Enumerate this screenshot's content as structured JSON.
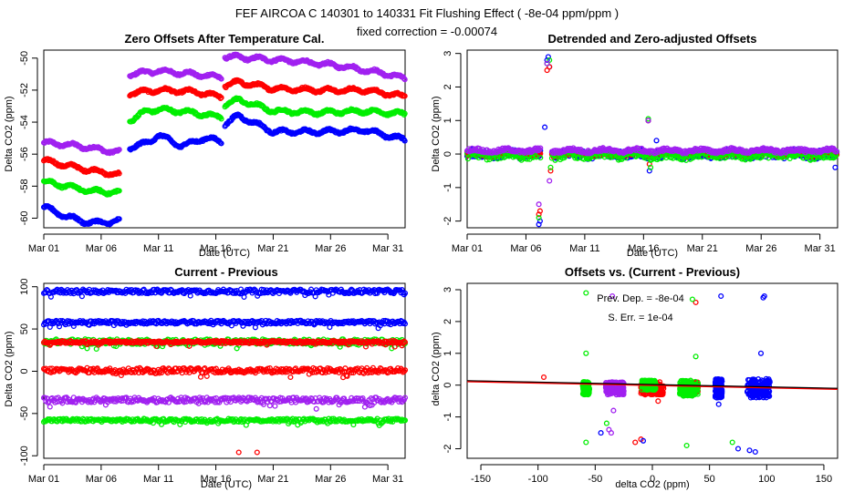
{
  "figure": {
    "suptitle": "FEF   AIRCOA C   140301 to 140331   Fit Flushing Effect ( -8e-04 ppm/ppm )",
    "subtitle": "fixed correction = -0.00074"
  },
  "colors": {
    "blue": "#0000ff",
    "red": "#ff0000",
    "green": "#00ee00",
    "purple": "#a020f0",
    "black": "#000000"
  },
  "chart_data": [
    {
      "id": "zero_offsets",
      "type": "scatter",
      "title": "Zero Offsets After Temperature Cal.",
      "xlabel": "Date (UTC)",
      "ylabel": "Delta CO2 (ppm)",
      "xlim": [
        0,
        31.5
      ],
      "ylim": [
        -60.6,
        -49.5
      ],
      "xticks": [
        {
          "v": 0,
          "label": "Mar 01"
        },
        {
          "v": 5,
          "label": "Mar 06"
        },
        {
          "v": 10,
          "label": "Mar 11"
        },
        {
          "v": 15,
          "label": "Mar 16"
        },
        {
          "v": 20,
          "label": "Mar 21"
        },
        {
          "v": 25,
          "label": "Mar 26"
        },
        {
          "v": 30,
          "label": "Mar 31"
        }
      ],
      "yticks": [
        {
          "v": -50,
          "label": "-50"
        },
        {
          "v": -52,
          "label": "-52"
        },
        {
          "v": -54,
          "label": "-54"
        },
        {
          "v": -56,
          "label": "-56"
        },
        {
          "v": -58,
          "label": "-58"
        },
        {
          "v": -60,
          "label": "-60"
        }
      ],
      "series": [
        {
          "name": "purple",
          "color": "purple",
          "segments": [
            {
              "x": [
                0,
                2,
                4,
                6.6
              ],
              "y": [
                -55.3,
                -55.4,
                -55.6,
                -55.9
              ]
            },
            {
              "x": [
                7.5,
                10,
                13,
                15.5
              ],
              "y": [
                -51.0,
                -50.8,
                -51.0,
                -51.2
              ]
            },
            {
              "x": [
                15.8,
                18,
                22,
                26,
                30,
                31.5
              ],
              "y": [
                -49.9,
                -50.0,
                -50.2,
                -50.5,
                -51.0,
                -51.3
              ]
            }
          ]
        },
        {
          "name": "red",
          "color": "red",
          "segments": [
            {
              "x": [
                0,
                2,
                4,
                6.6
              ],
              "y": [
                -56.4,
                -56.7,
                -57.0,
                -57.3
              ]
            },
            {
              "x": [
                7.5,
                10,
                13,
                15.5
              ],
              "y": [
                -52.2,
                -52.0,
                -52.1,
                -52.4
              ]
            },
            {
              "x": [
                15.8,
                17,
                20,
                24,
                28,
                31.5
              ],
              "y": [
                -51.7,
                -51.5,
                -51.9,
                -52.0,
                -52.0,
                -52.4
              ]
            }
          ]
        },
        {
          "name": "green",
          "color": "green",
          "segments": [
            {
              "x": [
                0,
                2,
                4,
                6.6
              ],
              "y": [
                -57.7,
                -58.0,
                -58.3,
                -58.4
              ]
            },
            {
              "x": [
                7.5,
                9,
                10,
                13,
                15.5
              ],
              "y": [
                -53.9,
                -53.3,
                -53.2,
                -53.4,
                -53.7
              ]
            },
            {
              "x": [
                15.8,
                17,
                20,
                24,
                28,
                31.5
              ],
              "y": [
                -52.9,
                -52.6,
                -53.3,
                -53.4,
                -53.3,
                -53.5
              ]
            }
          ]
        },
        {
          "name": "blue",
          "color": "blue",
          "segments": [
            {
              "x": [
                0,
                2,
                4,
                6.6
              ],
              "y": [
                -59.3,
                -59.9,
                -60.3,
                -60.2
              ]
            },
            {
              "x": [
                7.5,
                9,
                10,
                12,
                14,
                15.5
              ],
              "y": [
                -55.6,
                -55.3,
                -54.8,
                -55.5,
                -55.0,
                -55.2
              ]
            },
            {
              "x": [
                15.8,
                17,
                20,
                24,
                28,
                31.5
              ],
              "y": [
                -54.1,
                -53.6,
                -54.6,
                -54.6,
                -54.5,
                -55.1
              ]
            }
          ]
        }
      ]
    },
    {
      "id": "detrended",
      "type": "scatter",
      "title": "Detrended and Zero-adjusted Offsets",
      "xlabel": "Date (UTC)",
      "ylabel": "Delta CO2 (ppm)",
      "xlim": [
        0,
        31.5
      ],
      "ylim": [
        -2.2,
        3.1
      ],
      "xticks": [
        {
          "v": 0,
          "label": "Mar 01"
        },
        {
          "v": 5,
          "label": "Mar 06"
        },
        {
          "v": 10,
          "label": "Mar 11"
        },
        {
          "v": 15,
          "label": "Mar 16"
        },
        {
          "v": 20,
          "label": "Mar 21"
        },
        {
          "v": 25,
          "label": "Mar 26"
        },
        {
          "v": 30,
          "label": "Mar 31"
        }
      ],
      "yticks": [
        {
          "v": 3,
          "label": "3"
        },
        {
          "v": 2,
          "label": "2"
        },
        {
          "v": 1,
          "label": "1"
        },
        {
          "v": 0,
          "label": "0"
        },
        {
          "v": -1,
          "label": "-1"
        },
        {
          "v": -2,
          "label": "-2"
        }
      ],
      "series": [
        {
          "name": "blue",
          "color": "blue",
          "band": [
            0,
            31.5,
            -0.12,
            0.12
          ],
          "extras": [
            [
              6.1,
              -2.1
            ],
            [
              6.2,
              -2.0
            ],
            [
              6.8,
              2.8
            ],
            [
              6.9,
              2.9
            ],
            [
              7.0,
              2.6
            ],
            [
              6.6,
              0.8
            ],
            [
              15.4,
              1.0
            ],
            [
              15.5,
              -0.5
            ],
            [
              16.1,
              0.4
            ],
            [
              31.3,
              -0.4
            ]
          ]
        },
        {
          "name": "red",
          "color": "red",
          "band": [
            0,
            31.5,
            -0.06,
            0.06
          ],
          "extras": [
            [
              6.1,
              -1.8
            ],
            [
              6.2,
              -1.7
            ],
            [
              6.8,
              2.5
            ],
            [
              7.0,
              2.6
            ],
            [
              7.1,
              -0.5
            ],
            [
              15.4,
              1.0
            ],
            [
              15.5,
              -0.3
            ]
          ]
        },
        {
          "name": "green",
          "color": "green",
          "band": [
            0,
            31.5,
            -0.15,
            0.1
          ],
          "extras": [
            [
              6.1,
              -1.9
            ],
            [
              6.8,
              2.7
            ],
            [
              7.0,
              2.8
            ],
            [
              7.1,
              -0.4
            ],
            [
              15.4,
              1.05
            ],
            [
              15.6,
              -0.4
            ]
          ]
        },
        {
          "name": "purple",
          "color": "purple",
          "band": [
            0,
            31.5,
            0.05,
            0.15
          ],
          "extras": [
            [
              6.1,
              -1.5
            ],
            [
              6.8,
              2.7
            ],
            [
              7.0,
              -0.8
            ],
            [
              15.4,
              1.0
            ]
          ]
        }
      ]
    },
    {
      "id": "current_previous",
      "type": "scatter",
      "title": "Current - Previous",
      "xlabel": "Date (UTC)",
      "ylabel": "Delta CO2 (ppm)",
      "xlim": [
        0,
        31.5
      ],
      "ylim": [
        -103,
        104
      ],
      "xticks": [
        {
          "v": 0,
          "label": "Mar 01"
        },
        {
          "v": 5,
          "label": "Mar 06"
        },
        {
          "v": 10,
          "label": "Mar 11"
        },
        {
          "v": 15,
          "label": "Mar 16"
        },
        {
          "v": 20,
          "label": "Mar 21"
        },
        {
          "v": 25,
          "label": "Mar 26"
        },
        {
          "v": 30,
          "label": "Mar 31"
        }
      ],
      "yticks": [
        {
          "v": 100,
          "label": "100"
        },
        {
          "v": 50,
          "label": "50"
        },
        {
          "v": 0,
          "label": "0"
        },
        {
          "v": -50,
          "label": "-50"
        },
        {
          "v": -100,
          "label": "-100"
        }
      ],
      "series": [
        {
          "name": "blue",
          "color": "blue",
          "bands": [
            [
              0,
              31.5,
              92,
              97
            ],
            [
              0,
              31.5,
              56,
              60
            ]
          ]
        },
        {
          "name": "green",
          "color": "green",
          "bands": [
            [
              0,
              31.5,
              32,
              38
            ],
            [
              0,
              31.5,
              -60,
              -56
            ]
          ]
        },
        {
          "name": "red",
          "color": "red",
          "bands": [
            [
              0,
              31.5,
              -2,
              4
            ],
            [
              0,
              31.5,
              33,
              36
            ]
          ]
        },
        {
          "name": "purple",
          "color": "purple",
          "bands": [
            [
              0,
              31.5,
              -37,
              -31
            ]
          ]
        },
        {
          "name": "red_outliers",
          "color": "red",
          "extras": [
            [
              17,
              -96
            ],
            [
              18.6,
              -96
            ]
          ]
        }
      ]
    },
    {
      "id": "offsets_vs",
      "type": "scatter",
      "title": "Offsets vs. (Current - Previous)",
      "xlabel": "delta CO2 (ppm)",
      "ylabel": "delta CO2 (ppm)",
      "xlim": [
        -162,
        162
      ],
      "ylim": [
        -2.3,
        3.2
      ],
      "xticks": [
        {
          "v": -150,
          "label": "-150"
        },
        {
          "v": -100,
          "label": "-100"
        },
        {
          "v": -50,
          "label": "-50"
        },
        {
          "v": 0,
          "label": "0"
        },
        {
          "v": 50,
          "label": "50"
        },
        {
          "v": 100,
          "label": "100"
        },
        {
          "v": 150,
          "label": "150"
        }
      ],
      "yticks": [
        {
          "v": 3,
          "label": "3"
        },
        {
          "v": 2,
          "label": "2"
        },
        {
          "v": 1,
          "label": "1"
        },
        {
          "v": 0,
          "label": "0"
        },
        {
          "v": -1,
          "label": "-1"
        },
        {
          "v": -2,
          "label": "-2"
        }
      ],
      "annotation_dep": "Prev. Dep. =  -8e-04",
      "annotation_err": "S. Err. =  1e-04",
      "fit_line": {
        "x": [
          -162,
          162
        ],
        "y": [
          0.12,
          -0.12
        ]
      },
      "series": [
        {
          "name": "purple",
          "color": "purple",
          "clusters": [
            [
              -33,
              -0.1,
              0.2,
              8
            ]
          ],
          "extras": [
            [
              -35,
              2.8
            ],
            [
              -36,
              -1.5
            ],
            [
              -34,
              -0.8
            ],
            [
              -38,
              -1.4
            ]
          ]
        },
        {
          "name": "red",
          "color": "red",
          "clusters": [
            [
              0,
              -0.1,
              0.2,
              10
            ],
            [
              37,
              -0.05,
              0.15,
              3
            ]
          ],
          "extras": [
            [
              -95,
              0.25
            ],
            [
              -10,
              -1.7
            ],
            [
              -15,
              -1.8
            ],
            [
              5,
              -0.5
            ],
            [
              38,
              2.6
            ]
          ]
        },
        {
          "name": "green",
          "color": "green",
          "clusters": [
            [
              -58,
              -0.1,
              0.2,
              3
            ],
            [
              32,
              -0.1,
              0.25,
              8
            ],
            [
              -3,
              0,
              0.15,
              6
            ]
          ],
          "extras": [
            [
              -58,
              2.9
            ],
            [
              -58,
              1.0
            ],
            [
              -58,
              -1.8
            ],
            [
              35,
              2.7
            ],
            [
              38,
              0.9
            ],
            [
              30,
              -1.9
            ],
            [
              70,
              -1.8
            ],
            [
              -40,
              -1.2
            ]
          ]
        },
        {
          "name": "blue",
          "color": "blue",
          "clusters": [
            [
              93,
              -0.1,
              0.3,
              10
            ],
            [
              58,
              -0.1,
              0.3,
              3
            ]
          ],
          "extras": [
            [
              97,
              2.75
            ],
            [
              98,
              2.8
            ],
            [
              60,
              2.8
            ],
            [
              95,
              1.0
            ],
            [
              58,
              -0.6
            ],
            [
              75,
              -2.0
            ],
            [
              90,
              -2.1
            ],
            [
              85,
              -2.05
            ],
            [
              -45,
              -1.5
            ],
            [
              -8,
              -1.75
            ]
          ]
        }
      ]
    }
  ]
}
